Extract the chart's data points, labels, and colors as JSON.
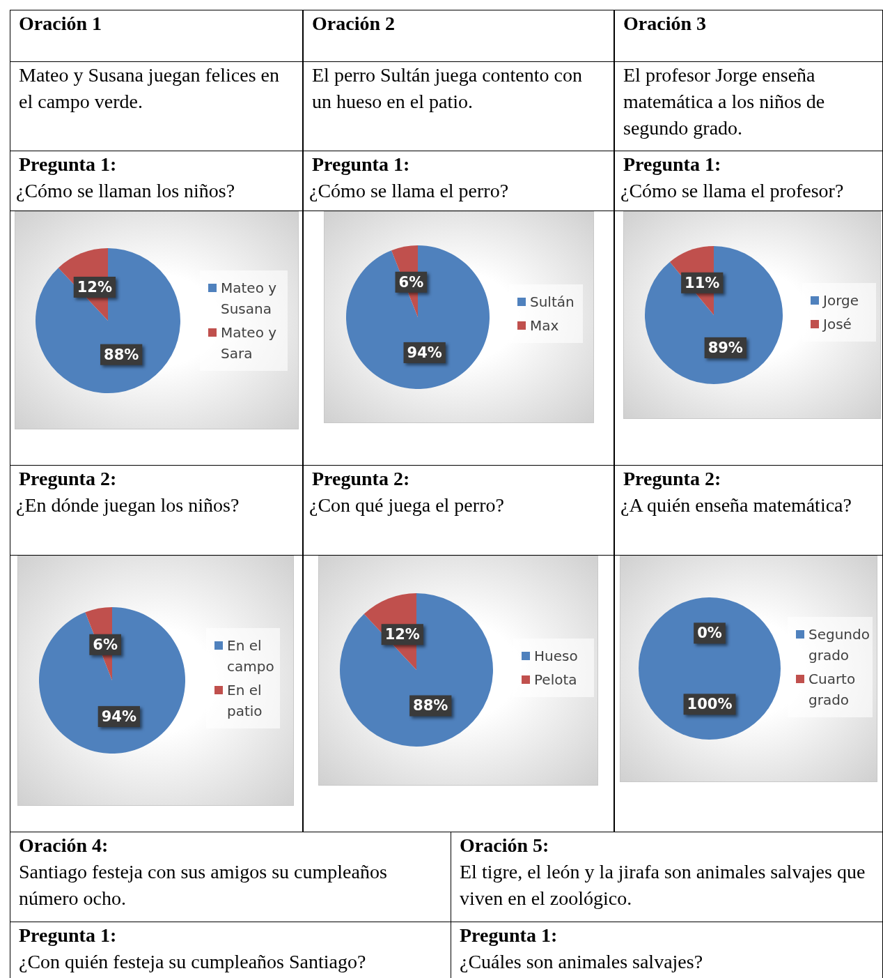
{
  "chart_data": [
    {
      "type": "other",
      "title": "Oración 1",
      "subtitle": "Mateo y Susana juegan felices en el campo verde."
    },
    {
      "type": "other",
      "title": "Oración 2",
      "subtitle": "El perro Sultán juega contento con un hueso en el patio."
    },
    {
      "type": "other",
      "title": "Oración 3",
      "subtitle": "El profesor Jorge enseña matemática a los niños de segundo grado."
    },
    {
      "type": "pie",
      "title": "Pregunta 1:",
      "subtitle": "¿Cómo se llaman los niños?",
      "categories": [
        "Mateo y Susana",
        "Mateo y Sara"
      ],
      "values": [
        88,
        12
      ],
      "colors": [
        "#4f81bd",
        "#c0504d"
      ],
      "value_labels": [
        "88%",
        "12%"
      ],
      "legend": "right"
    },
    {
      "type": "pie",
      "title": "Pregunta 1:",
      "subtitle": "¿Cómo se llama el perro?",
      "categories": [
        "Sultán",
        "Max"
      ],
      "values": [
        94,
        6
      ],
      "colors": [
        "#4f81bd",
        "#c0504d"
      ],
      "value_labels": [
        "94%",
        "6%"
      ],
      "legend": "right"
    },
    {
      "type": "pie",
      "title": "Pregunta 1:",
      "subtitle": "¿Cómo se llama el profesor?",
      "categories": [
        "Jorge",
        "José"
      ],
      "values": [
        89,
        11
      ],
      "colors": [
        "#4f81bd",
        "#c0504d"
      ],
      "value_labels": [
        "89%",
        "11%"
      ],
      "legend": "right"
    },
    {
      "type": "pie",
      "title": "Pregunta 2:",
      "subtitle": "¿En dónde juegan los niños?",
      "categories": [
        "En el campo",
        "En el patio"
      ],
      "values": [
        94,
        6
      ],
      "colors": [
        "#4f81bd",
        "#c0504d"
      ],
      "value_labels": [
        "94%",
        "6%"
      ],
      "legend": "right"
    },
    {
      "type": "pie",
      "title": "Pregunta 2:",
      "subtitle": "¿Con qué juega el perro?",
      "categories": [
        "Hueso",
        "Pelota"
      ],
      "values": [
        88,
        12
      ],
      "colors": [
        "#4f81bd",
        "#c0504d"
      ],
      "value_labels": [
        "88%",
        "12%"
      ],
      "legend": "right"
    },
    {
      "type": "pie",
      "title": "Pregunta 2:",
      "subtitle": "¿A quién enseña matemática?",
      "categories": [
        "Segundo grado",
        "Cuarto grado"
      ],
      "values": [
        100,
        0
      ],
      "colors": [
        "#4f81bd",
        "#c0504d"
      ],
      "value_labels": [
        "100%",
        "0%"
      ],
      "legend": "right"
    },
    {
      "type": "other",
      "title": "Oración 4:",
      "subtitle": "Santiago festeja con sus amigos su cumpleaños número ocho."
    },
    {
      "type": "other",
      "title": "Oración 5:",
      "subtitle": "El tigre, el león y la jirafa son animales salvajes que viven en el zoológico."
    },
    {
      "type": "other",
      "title": "Pregunta 1:",
      "subtitle": "¿Con quién festeja su cumpleaños Santiago?"
    },
    {
      "type": "other",
      "title": "Pregunta 1:",
      "subtitle": "¿Cuáles son animales salvajes?"
    }
  ]
}
